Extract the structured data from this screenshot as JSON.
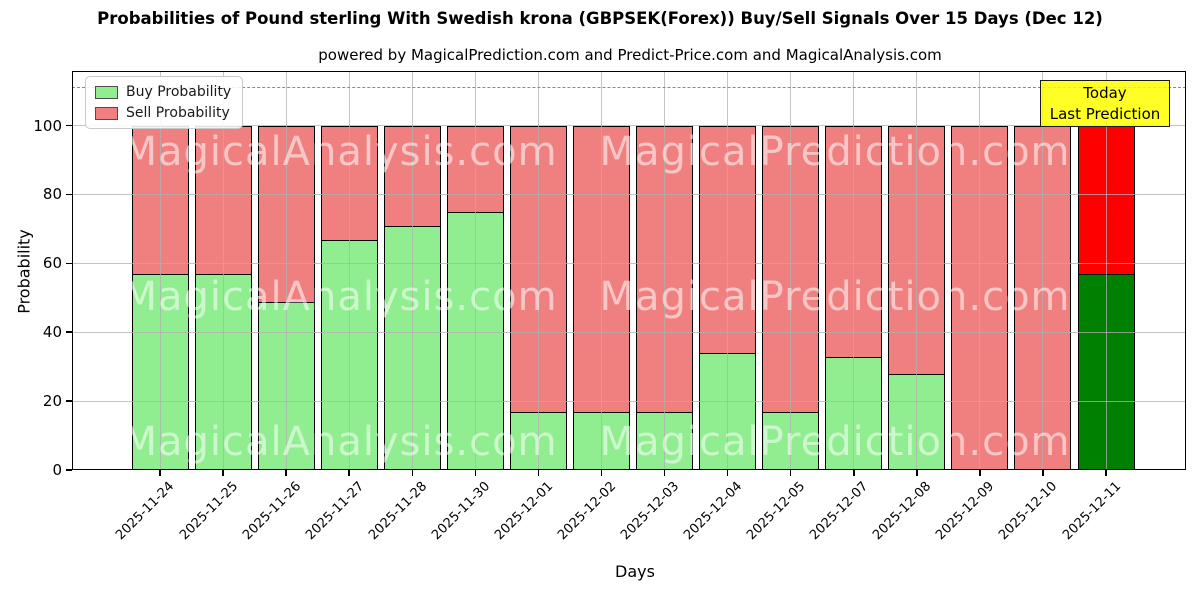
{
  "title": "Probabilities of Pound sterling With Swedish krona (GBPSEK(Forex)) Buy/Sell Signals Over 15 Days (Dec 12)",
  "subtitle": "powered by MagicalPrediction.com and Predict-Price.com and MagicalAnalysis.com",
  "legend": {
    "position": "upper left",
    "items": [
      {
        "label": "Buy Probability",
        "color": "#90ee90"
      },
      {
        "label": "Sell Probability",
        "color": "#f08080"
      }
    ]
  },
  "annotation": {
    "line1": "Today",
    "line2": "Last Prediction",
    "bg_color": "#ffff00",
    "border_color": "#1a1a1a"
  },
  "watermark": {
    "left_text": "MagicalAnalysis.com",
    "right_text": "MagicalPrediction.com"
  },
  "axes": {
    "xlabel": "Days",
    "ylabel": "Probability",
    "yticks": [
      0,
      20,
      40,
      60,
      80,
      100
    ],
    "ylim": [
      0,
      116
    ],
    "reference_line_y": 110,
    "grid_color": "#b0b0b0",
    "reference_line_color": "#8a8a8a"
  },
  "chart_data": {
    "type": "bar",
    "stacked": true,
    "title": "Probabilities of Pound sterling With Swedish krona (GBPSEK(Forex)) Buy/Sell Signals Over 15 Days (Dec 12)",
    "xlabel": "Days",
    "ylabel": "Probability",
    "ylim": [
      0,
      116
    ],
    "grid": true,
    "legend_position": "upper left",
    "categories": [
      "2025-11-24",
      "2025-11-25",
      "2025-11-26",
      "2025-11-27",
      "2025-11-28",
      "2025-11-30",
      "2025-12-01",
      "2025-12-02",
      "2025-12-03",
      "2025-12-04",
      "2025-12-05",
      "2025-12-07",
      "2025-12-08",
      "2025-12-09",
      "2025-12-10",
      "2025-12-11"
    ],
    "series": [
      {
        "name": "Buy Probability",
        "color": "#90ee90",
        "values": [
          57,
          57,
          49,
          67,
          71,
          75,
          17,
          17,
          17,
          34,
          17,
          33,
          28,
          0,
          0,
          57
        ]
      },
      {
        "name": "Sell Probability",
        "color": "#f08080",
        "values": [
          43,
          43,
          51,
          33,
          29,
          25,
          83,
          83,
          83,
          66,
          83,
          67,
          72,
          100,
          100,
          43
        ]
      }
    ],
    "highlight_last_bar": {
      "buy_color": "#008000",
      "sell_color": "#ff0000",
      "note": "last bar (2025-12-11) uses solid green/red"
    }
  }
}
